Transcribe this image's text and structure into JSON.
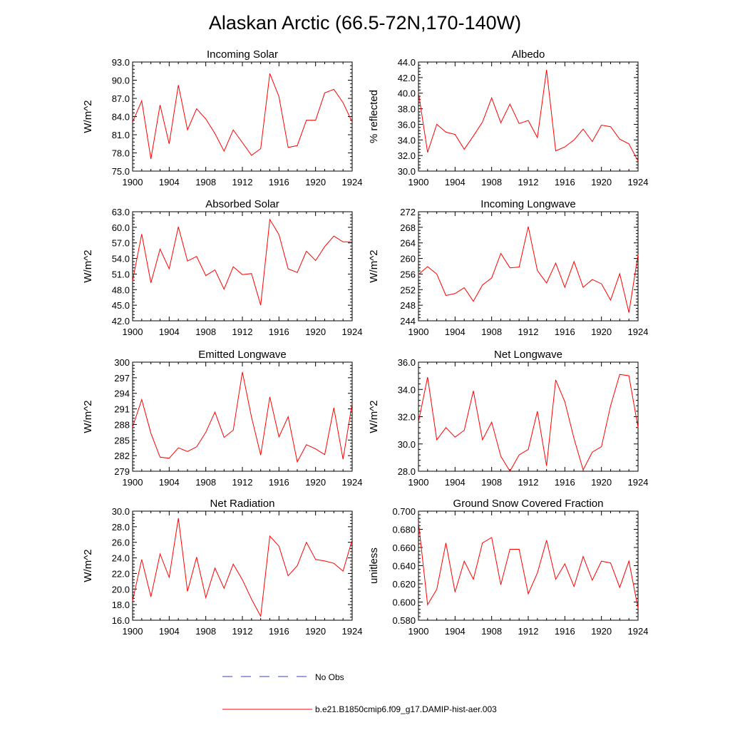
{
  "figure": {
    "title": "Alaskan Arctic (66.5-72N,170-140W)",
    "legend": [
      {
        "label": "No Obs",
        "color": "#3344bb",
        "style": "dashed"
      },
      {
        "label": "b.e21.B1850cmip6.f09_g17.DAMIP-hist-aer.003",
        "color": "#ff0000",
        "style": "solid"
      }
    ]
  },
  "chart_data": [
    {
      "type": "line",
      "title": "Incoming Solar",
      "ylabel": "W/m^2",
      "xlim": [
        1900,
        1924
      ],
      "ylim": [
        75,
        93
      ],
      "xticks": [
        1900,
        1904,
        1908,
        1912,
        1916,
        1920,
        1924
      ],
      "yticks": [
        "75.0",
        "78.0",
        "81.0",
        "84.0",
        "87.0",
        "90.0",
        "93.0"
      ],
      "grid": false,
      "series": [
        {
          "color": "#ff0000",
          "x": [
            1900,
            1901,
            1902,
            1903,
            1904,
            1905,
            1906,
            1907,
            1908,
            1909,
            1910,
            1911,
            1912,
            1913,
            1914,
            1915,
            1916,
            1917,
            1918,
            1919,
            1920,
            1921,
            1922,
            1923,
            1924
          ],
          "values": [
            83.1,
            86.6,
            77.0,
            85.9,
            79.5,
            89.2,
            81.8,
            85.3,
            83.6,
            81.2,
            78.3,
            81.8,
            79.7,
            77.6,
            78.7,
            91.1,
            87.3,
            78.9,
            79.2,
            83.4,
            83.4,
            87.9,
            88.5,
            86.3,
            83.1
          ]
        }
      ]
    },
    {
      "type": "line",
      "title": "Albedo",
      "ylabel": "% reflected",
      "xlim": [
        1900,
        1924
      ],
      "ylim": [
        30,
        44
      ],
      "xticks": [
        1900,
        1904,
        1908,
        1912,
        1916,
        1920,
        1924
      ],
      "yticks": [
        "30.0",
        "32.0",
        "34.0",
        "36.0",
        "38.0",
        "40.0",
        "42.0",
        "44.0"
      ],
      "grid": false,
      "series": [
        {
          "color": "#ff0000",
          "x": [
            1900,
            1901,
            1902,
            1903,
            1904,
            1905,
            1906,
            1907,
            1908,
            1909,
            1910,
            1911,
            1912,
            1913,
            1914,
            1915,
            1916,
            1917,
            1918,
            1919,
            1920,
            1921,
            1922,
            1923,
            1924
          ],
          "values": [
            40.1,
            32.4,
            36.0,
            35.0,
            34.7,
            32.8,
            34.5,
            36.3,
            39.4,
            36.2,
            38.6,
            36.1,
            36.5,
            34.3,
            43.0,
            32.6,
            33.1,
            34.0,
            35.4,
            33.8,
            35.9,
            35.7,
            34.1,
            33.5,
            31.3
          ]
        }
      ]
    },
    {
      "type": "line",
      "title": "Absorbed Solar",
      "ylabel": "W/m^2",
      "xlim": [
        1900,
        1924
      ],
      "ylim": [
        42,
        63
      ],
      "xticks": [
        1900,
        1904,
        1908,
        1912,
        1916,
        1920,
        1924
      ],
      "yticks": [
        "42.0",
        "45.0",
        "48.0",
        "51.0",
        "54.0",
        "57.0",
        "60.0",
        "63.0"
      ],
      "grid": false,
      "series": [
        {
          "color": "#ff0000",
          "x": [
            1900,
            1901,
            1902,
            1903,
            1904,
            1905,
            1906,
            1907,
            1908,
            1909,
            1910,
            1911,
            1912,
            1913,
            1914,
            1915,
            1916,
            1917,
            1918,
            1919,
            1920,
            1921,
            1922,
            1923,
            1924
          ],
          "values": [
            49.7,
            58.7,
            49.3,
            55.8,
            52.0,
            60.1,
            53.5,
            54.4,
            50.7,
            51.8,
            48.1,
            52.4,
            50.9,
            51.1,
            45.0,
            61.5,
            58.6,
            52.0,
            51.3,
            55.4,
            53.6,
            56.3,
            58.3,
            57.2,
            57.2
          ]
        }
      ]
    },
    {
      "type": "line",
      "title": "Incoming Longwave",
      "ylabel": "W/m^2",
      "xlim": [
        1900,
        1924
      ],
      "ylim": [
        244,
        272
      ],
      "xticks": [
        1900,
        1904,
        1908,
        1912,
        1916,
        1920,
        1924
      ],
      "yticks": [
        "244",
        "248",
        "252",
        "256",
        "260",
        "264",
        "268",
        "272"
      ],
      "grid": false,
      "series": [
        {
          "color": "#ff0000",
          "x": [
            1900,
            1901,
            1902,
            1903,
            1904,
            1905,
            1906,
            1907,
            1908,
            1909,
            1910,
            1911,
            1912,
            1913,
            1914,
            1915,
            1916,
            1917,
            1918,
            1919,
            1920,
            1921,
            1922,
            1923,
            1924
          ],
          "values": [
            255.9,
            257.9,
            256.0,
            250.5,
            251.0,
            252.5,
            249.0,
            253.2,
            255.0,
            261.3,
            257.6,
            257.8,
            268.2,
            256.9,
            253.7,
            258.8,
            252.6,
            259.2,
            252.6,
            254.6,
            253.5,
            249.3,
            256.1,
            246.1,
            261.0
          ]
        }
      ]
    },
    {
      "type": "line",
      "title": "Emitted Longwave",
      "ylabel": "W/m^2",
      "xlim": [
        1900,
        1924
      ],
      "ylim": [
        279,
        300
      ],
      "xticks": [
        1900,
        1904,
        1908,
        1912,
        1916,
        1920,
        1924
      ],
      "yticks": [
        "279",
        "282",
        "285",
        "288",
        "291",
        "294",
        "297",
        "300"
      ],
      "grid": false,
      "series": [
        {
          "color": "#ff0000",
          "x": [
            1900,
            1901,
            1902,
            1903,
            1904,
            1905,
            1906,
            1907,
            1908,
            1909,
            1910,
            1911,
            1912,
            1913,
            1914,
            1915,
            1916,
            1917,
            1918,
            1919,
            1920,
            1921,
            1922,
            1923,
            1924
          ],
          "values": [
            287.5,
            292.8,
            286.3,
            281.7,
            281.5,
            283.5,
            282.8,
            283.7,
            286.5,
            290.4,
            285.5,
            286.9,
            298.1,
            289.4,
            282.1,
            293.3,
            285.6,
            289.5,
            280.8,
            284.1,
            283.3,
            282.2,
            291.2,
            281.3,
            292.1
          ]
        }
      ]
    },
    {
      "type": "line",
      "title": "Net Longwave",
      "ylabel": "W/m^2",
      "xlim": [
        1900,
        1924
      ],
      "ylim": [
        28,
        36
      ],
      "xticks": [
        1900,
        1904,
        1908,
        1912,
        1916,
        1920,
        1924
      ],
      "yticks": [
        "28.0",
        "30.0",
        "32.0",
        "34.0",
        "36.0"
      ],
      "grid": false,
      "series": [
        {
          "color": "#ff0000",
          "x": [
            1900,
            1901,
            1902,
            1903,
            1904,
            1905,
            1906,
            1907,
            1908,
            1909,
            1910,
            1911,
            1912,
            1913,
            1914,
            1915,
            1916,
            1917,
            1918,
            1919,
            1920,
            1921,
            1922,
            1923,
            1924
          ],
          "values": [
            31.6,
            34.9,
            30.3,
            31.2,
            30.5,
            31.0,
            33.9,
            30.3,
            31.6,
            29.1,
            28.0,
            29.2,
            29.6,
            32.4,
            28.4,
            34.7,
            33.1,
            30.4,
            28.1,
            29.4,
            29.8,
            32.8,
            35.1,
            35.0,
            31.2
          ]
        }
      ]
    },
    {
      "type": "line",
      "title": "Net Radiation",
      "ylabel": "W/m^2",
      "xlim": [
        1900,
        1924
      ],
      "ylim": [
        16,
        30
      ],
      "xticks": [
        1900,
        1904,
        1908,
        1912,
        1916,
        1920,
        1924
      ],
      "yticks": [
        "16.0",
        "18.0",
        "20.0",
        "22.0",
        "24.0",
        "26.0",
        "28.0",
        "30.0"
      ],
      "grid": false,
      "series": [
        {
          "color": "#ff0000",
          "x": [
            1900,
            1901,
            1902,
            1903,
            1904,
            1905,
            1906,
            1907,
            1908,
            1909,
            1910,
            1911,
            1912,
            1913,
            1914,
            1915,
            1916,
            1917,
            1918,
            1919,
            1920,
            1921,
            1922,
            1923,
            1924
          ],
          "values": [
            18.5,
            23.8,
            19.0,
            24.5,
            21.5,
            29.1,
            19.7,
            24.1,
            18.9,
            22.7,
            20.1,
            23.2,
            21.2,
            18.7,
            16.5,
            26.8,
            25.5,
            21.7,
            23.0,
            26.0,
            23.8,
            23.6,
            23.3,
            22.3,
            26.3
          ]
        }
      ]
    },
    {
      "type": "line",
      "title": "Ground Snow Covered Fraction",
      "ylabel": "unitless",
      "xlim": [
        1900,
        1924
      ],
      "ylim": [
        0.58,
        0.7
      ],
      "xticks": [
        1900,
        1904,
        1908,
        1912,
        1916,
        1920,
        1924
      ],
      "yticks": [
        "0.580",
        "0.600",
        "0.620",
        "0.640",
        "0.660",
        "0.680",
        "0.700"
      ],
      "grid": false,
      "series": [
        {
          "color": "#ff0000",
          "x": [
            1900,
            1901,
            1902,
            1903,
            1904,
            1905,
            1906,
            1907,
            1908,
            1909,
            1910,
            1911,
            1912,
            1913,
            1914,
            1915,
            1916,
            1917,
            1918,
            1919,
            1920,
            1921,
            1922,
            1923,
            1924
          ],
          "values": [
            0.688,
            0.597,
            0.614,
            0.665,
            0.611,
            0.645,
            0.625,
            0.665,
            0.671,
            0.619,
            0.658,
            0.658,
            0.609,
            0.632,
            0.668,
            0.625,
            0.642,
            0.617,
            0.65,
            0.624,
            0.645,
            0.643,
            0.616,
            0.645,
            0.593
          ]
        }
      ]
    }
  ]
}
